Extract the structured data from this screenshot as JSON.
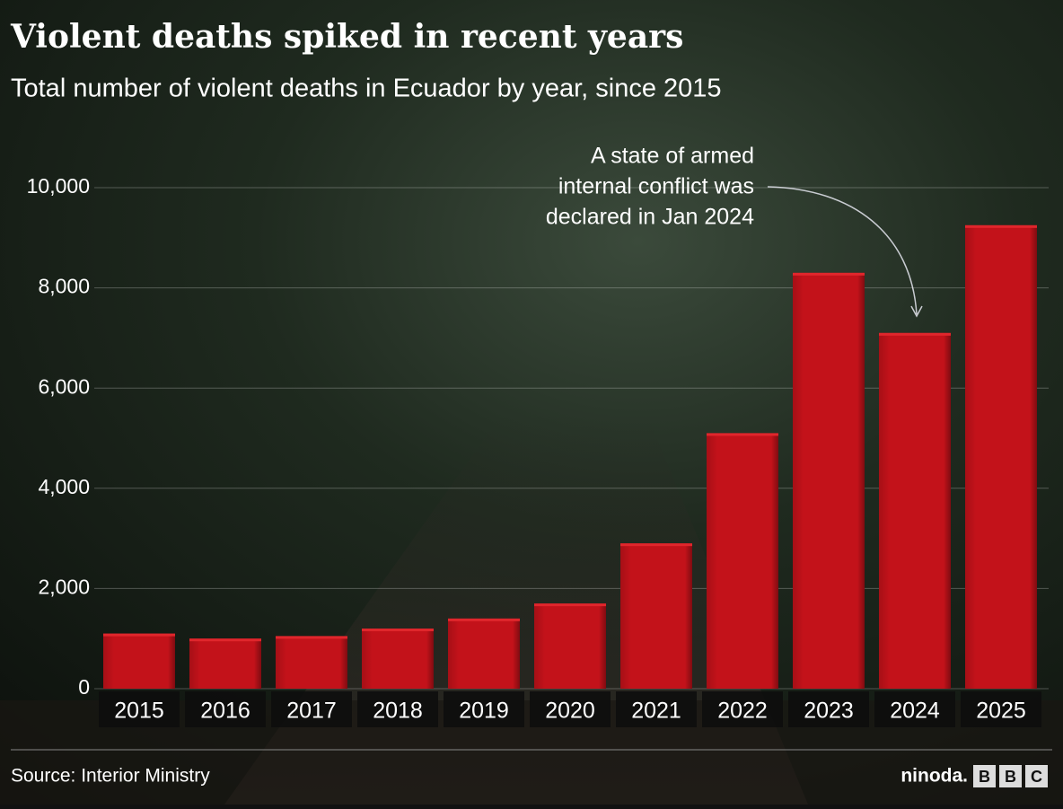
{
  "chart_data": {
    "type": "bar",
    "title": "Violent deaths spiked in recent years",
    "subtitle": "Total number of violent deaths in Ecuador by year, since 2015",
    "categories": [
      "2015",
      "2016",
      "2017",
      "2018",
      "2019",
      "2020",
      "2021",
      "2022",
      "2023",
      "2024",
      "2025"
    ],
    "values": [
      1100,
      1000,
      1050,
      1200,
      1400,
      1700,
      2900,
      5100,
      8300,
      7100,
      9250
    ],
    "color": "#c3121a",
    "ylim": [
      0,
      10000
    ],
    "yticks": [
      0,
      {
        "value": 2000,
        "label": "2,000"
      },
      {
        "value": 4000,
        "label": "4,000"
      },
      {
        "value": 6000,
        "label": "6,000"
      },
      {
        "value": 8000,
        "label": "8,000"
      },
      {
        "value": 10000,
        "label": "10,000"
      }
    ],
    "grid": true,
    "annotation": [
      "A state of armed",
      "internal conflict was",
      "declared in Jan 2024"
    ],
    "source": "Source: Interior Ministry",
    "credit": "ninoda.",
    "logo": [
      "B",
      "B",
      "C"
    ]
  }
}
